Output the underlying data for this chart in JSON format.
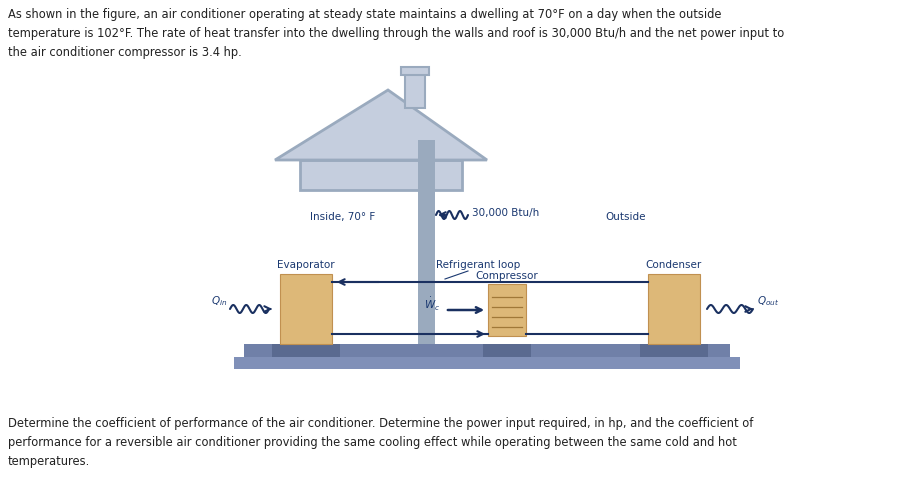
{
  "title_text": "As shown in the figure, an air conditioner operating at steady state maintains a dwelling at 70°F on a day when the outside\ntemperature is 102°F. The rate of heat transfer into the dwelling through the walls and roof is 30,000 Btu/h and the net power input to\nthe air conditioner compressor is 3.4 hp.",
  "bottom_text": "Determine the coefficient of performance of the air conditioner. Determine the power input required, in hp, and the coefficient of\nperformance for a reversible air conditioner providing the same cooling effect while operating between the same cold and hot\ntemperatures.",
  "bg_color": "#ffffff",
  "house_fill": "#c5cede",
  "house_edge": "#9aaabe",
  "box_fill": "#ddb878",
  "box_edge": "#c09050",
  "floor_fill_dark": "#5a6a90",
  "floor_fill_light": "#7080a8",
  "ground_fill": "#8090b8",
  "pipe_fill": "#9aaabe",
  "arrow_color": "#1a3060",
  "label_color": "#1a3870",
  "text_color": "#222222",
  "inside_label": "Inside, 70° F",
  "outside_label": "Outside",
  "evaporator_label": "Evaporator",
  "condenser_label": "Condenser",
  "compressor_label": "Compressor",
  "refrigerant_label": "Refrigerant loop",
  "heat_label": "30,000 Btu/h"
}
